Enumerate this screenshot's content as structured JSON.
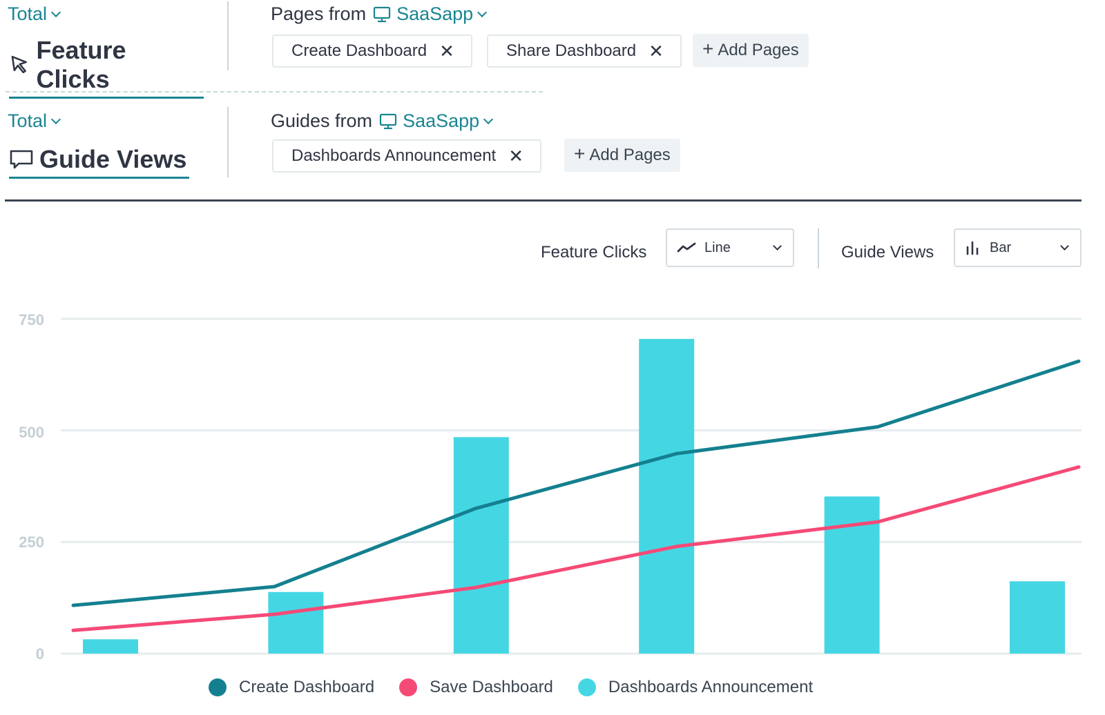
{
  "metrics": [
    {
      "aggregation": "Total",
      "title": "Feature Clicks",
      "icon": "cursor-icon",
      "source_prefix": "Pages from",
      "source_app": "SaaSapp",
      "chips": [
        "Create Dashboard",
        "Share Dashboard"
      ],
      "add_label": "Add Pages"
    },
    {
      "aggregation": "Total",
      "title": "Guide Views",
      "icon": "speech-bubble-icon",
      "source_prefix": "Guides from",
      "source_app": "SaaSapp",
      "chips": [
        "Dashboards Announcement"
      ],
      "add_label": "Add Pages"
    }
  ],
  "controls": {
    "feature_clicks_label": "Feature Clicks",
    "feature_clicks_type": "Line",
    "guide_views_label": "Guide Views",
    "guide_views_type": "Bar"
  },
  "colors": {
    "accent": "#1a8591",
    "create_dashboard": "#14808f",
    "save_dashboard": "#f54a76",
    "dashboards_announcement": "#45d6e4",
    "grid": "#e6ecee"
  },
  "chart_data": {
    "type": "bar",
    "ylim": [
      0,
      750
    ],
    "yticks": [
      "0",
      "250",
      "500",
      "750"
    ],
    "categories": [
      "",
      "",
      "",
      "",
      "",
      ""
    ],
    "series": [
      {
        "name": "Create Dashboard",
        "type": "line",
        "values": [
          108,
          150,
          325,
          448,
          508,
          655
        ]
      },
      {
        "name": "Save Dashboard",
        "type": "line",
        "values": [
          52,
          88,
          148,
          240,
          295,
          418
        ]
      },
      {
        "name": "Dashboards Announcement",
        "type": "bar",
        "values": [
          32,
          138,
          485,
          705,
          352,
          162
        ]
      }
    ]
  }
}
